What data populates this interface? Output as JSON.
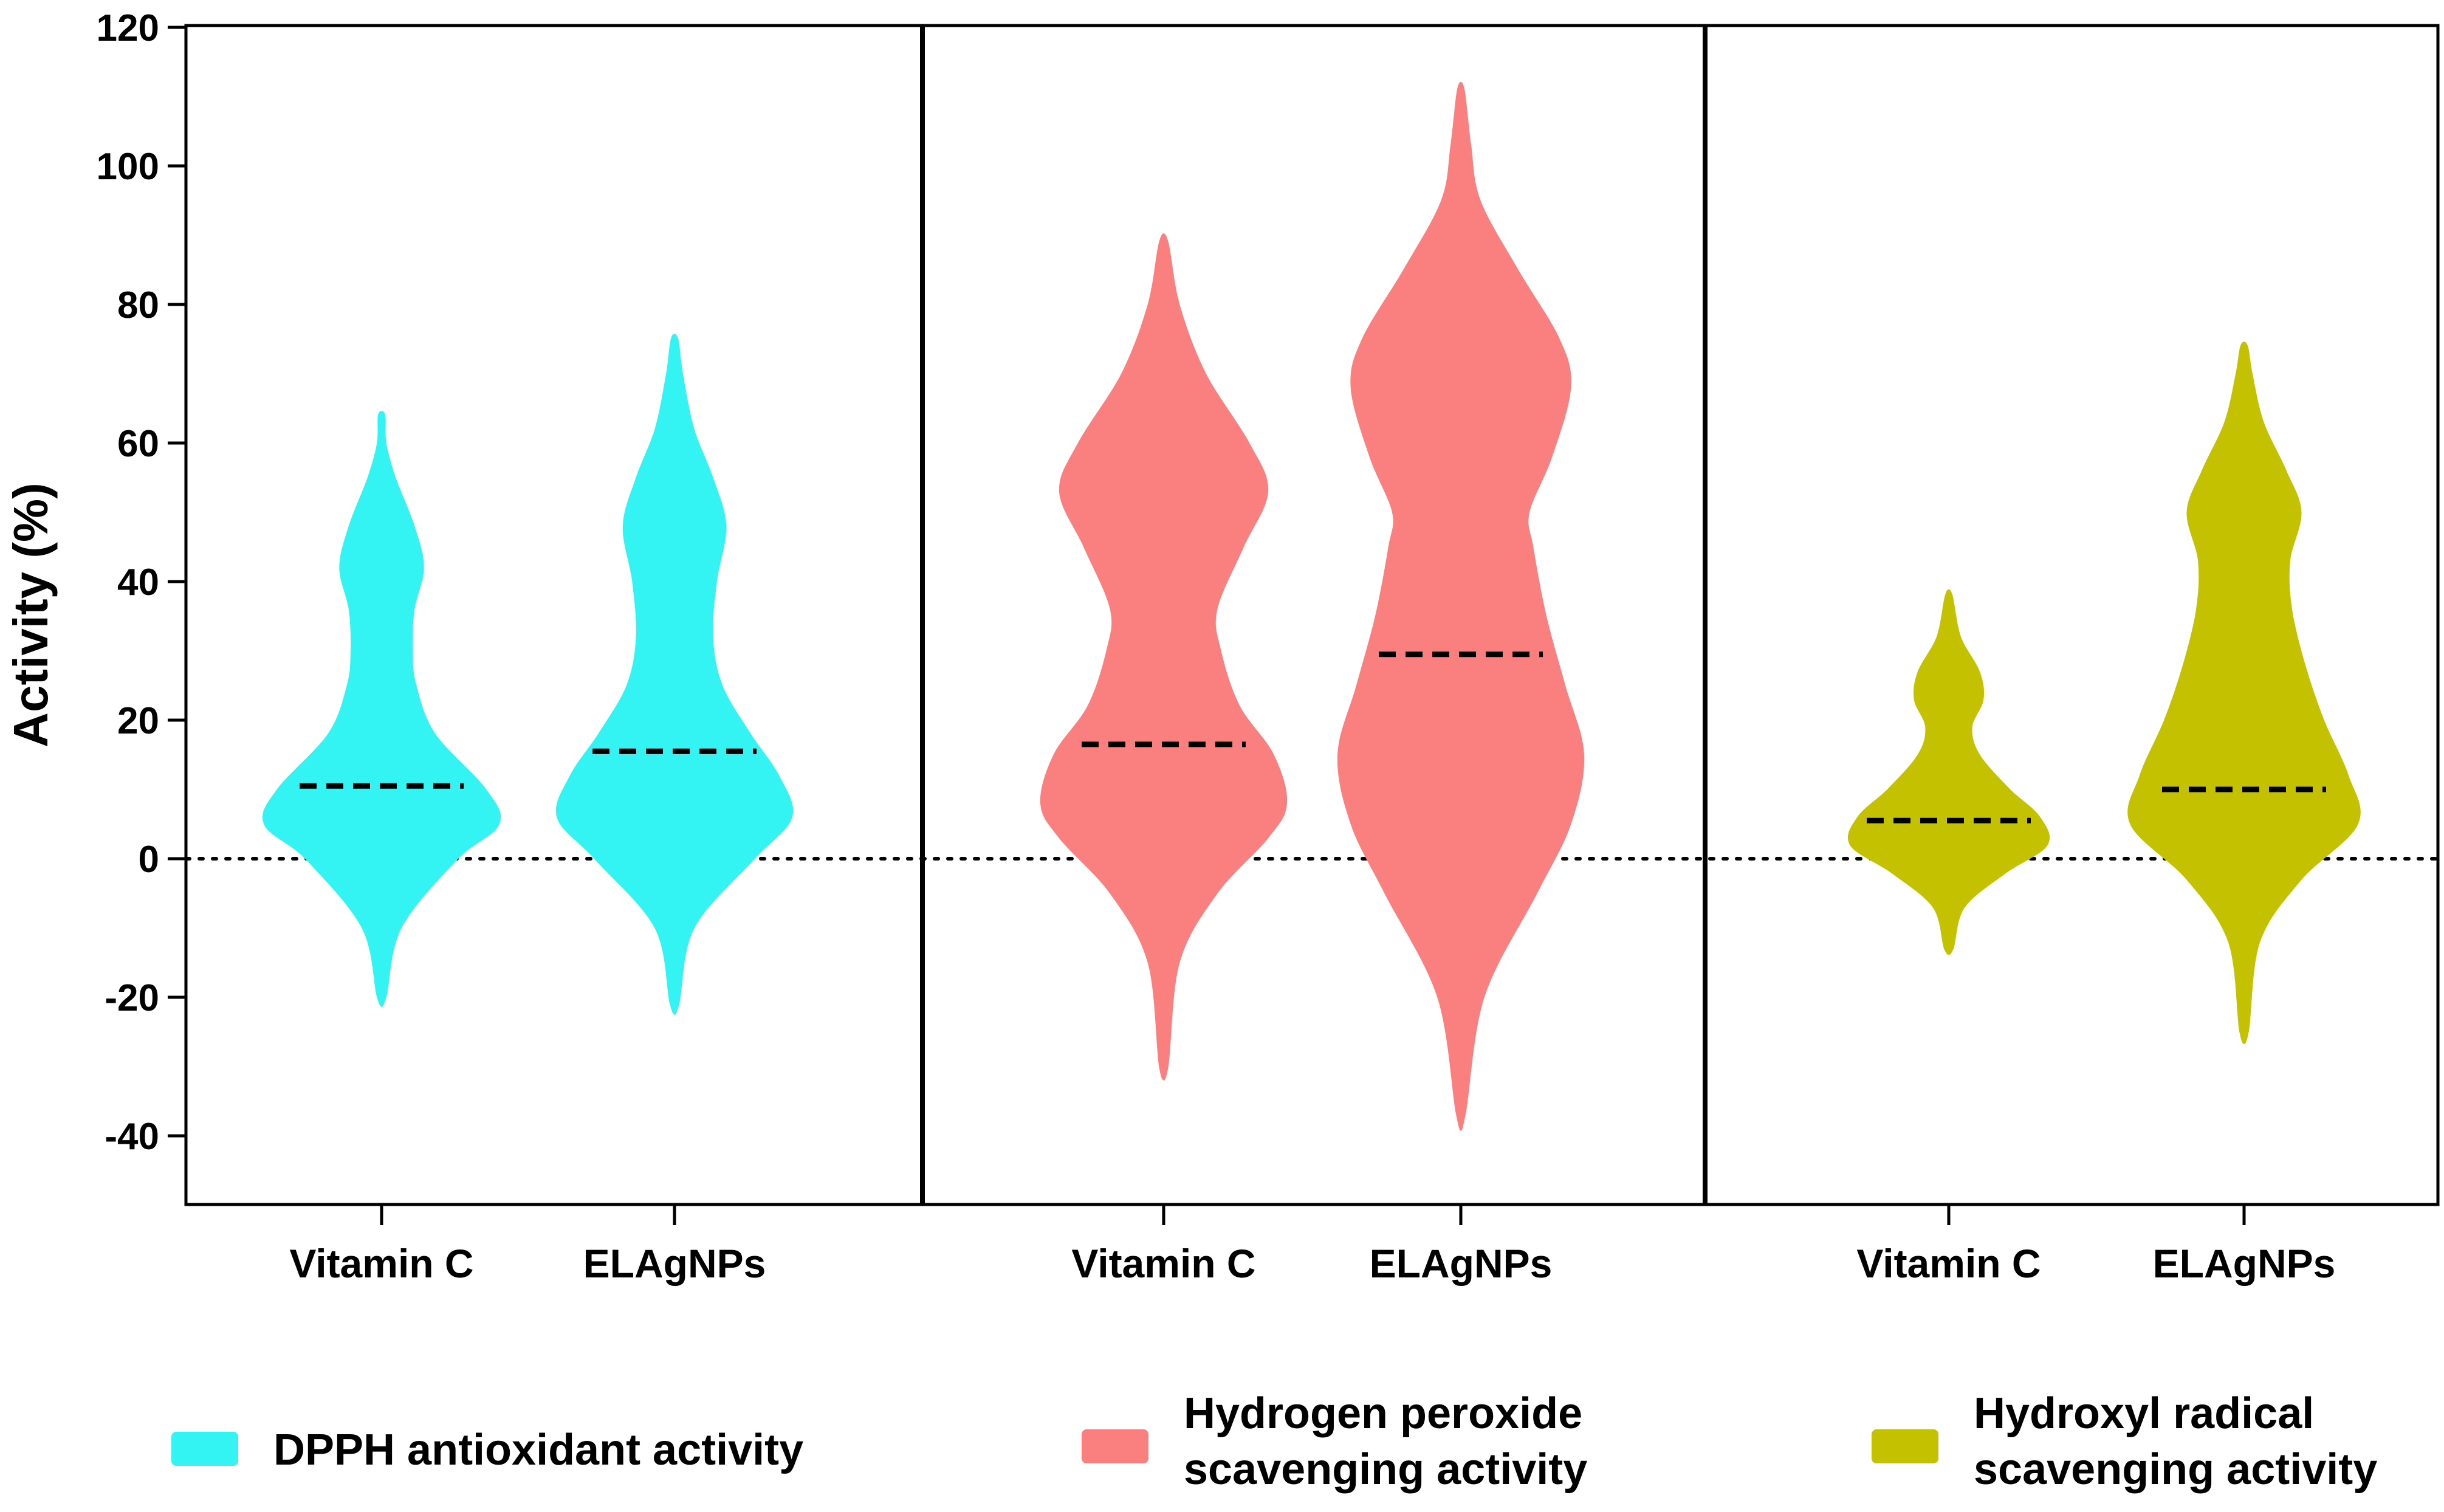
{
  "chart_data": {
    "type": "violin",
    "ylabel": "Activity (%)",
    "ylim": [
      -50,
      120
    ],
    "yticks": [
      -40,
      -20,
      0,
      20,
      40,
      60,
      80,
      100,
      120
    ],
    "reference_line": 0,
    "panels": [
      {
        "name": "DPPH antioxidant activity",
        "color": "#33f3f3",
        "legend": [
          "DPPH antioxidant activity"
        ],
        "categories": [
          "Vitamin C",
          "ELAgNPs"
        ],
        "violins": [
          {
            "category": "Vitamin C",
            "median": 10.5,
            "min": -20,
            "max": 64,
            "profile": [
              [
                -20,
                0.02
              ],
              [
                -10,
                0.1
              ],
              [
                0,
                0.4
              ],
              [
                5,
                0.62
              ],
              [
                10,
                0.55
              ],
              [
                18,
                0.28
              ],
              [
                25,
                0.18
              ],
              [
                30,
                0.16
              ],
              [
                36,
                0.17
              ],
              [
                42,
                0.22
              ],
              [
                48,
                0.17
              ],
              [
                55,
                0.07
              ],
              [
                60,
                0.02
              ],
              [
                64,
                0.015
              ]
            ]
          },
          {
            "category": "ELAgNPs",
            "median": 15.5,
            "min": -21,
            "max": 75,
            "profile": [
              [
                -21,
                0.02
              ],
              [
                -10,
                0.1
              ],
              [
                0,
                0.42
              ],
              [
                6,
                0.62
              ],
              [
                12,
                0.55
              ],
              [
                18,
                0.4
              ],
              [
                25,
                0.25
              ],
              [
                32,
                0.2
              ],
              [
                40,
                0.22
              ],
              [
                48,
                0.27
              ],
              [
                55,
                0.2
              ],
              [
                62,
                0.1
              ],
              [
                70,
                0.04
              ],
              [
                75,
                0.015
              ]
            ]
          }
        ]
      },
      {
        "name": "Hydrogen peroxide scavenging activity",
        "color": "#fa8080",
        "legend": [
          "Hydrogen peroxide",
          "scavenging activity"
        ],
        "categories": [
          "Vitamin C",
          "ELAgNPs"
        ],
        "violins": [
          {
            "category": "Vitamin C",
            "median": 16.5,
            "min": -30,
            "max": 89,
            "profile": [
              [
                -30,
                0.02
              ],
              [
                -15,
                0.08
              ],
              [
                -5,
                0.28
              ],
              [
                3,
                0.55
              ],
              [
                8,
                0.65
              ],
              [
                15,
                0.58
              ],
              [
                22,
                0.4
              ],
              [
                30,
                0.3
              ],
              [
                36,
                0.28
              ],
              [
                45,
                0.42
              ],
              [
                53,
                0.55
              ],
              [
                60,
                0.45
              ],
              [
                70,
                0.22
              ],
              [
                80,
                0.08
              ],
              [
                89,
                0.02
              ]
            ]
          },
          {
            "category": "ELAgNPs",
            "median": 29.5,
            "min": -37,
            "max": 111,
            "profile": [
              [
                -37,
                0.02
              ],
              [
                -20,
                0.12
              ],
              [
                -5,
                0.4
              ],
              [
                5,
                0.58
              ],
              [
                15,
                0.65
              ],
              [
                25,
                0.55
              ],
              [
                35,
                0.45
              ],
              [
                45,
                0.38
              ],
              [
                50,
                0.36
              ],
              [
                58,
                0.48
              ],
              [
                68,
                0.58
              ],
              [
                75,
                0.52
              ],
              [
                85,
                0.3
              ],
              [
                95,
                0.1
              ],
              [
                103,
                0.05
              ],
              [
                111,
                0.015
              ]
            ]
          }
        ]
      },
      {
        "name": "Hydroxyl radical scavenging activity",
        "color": "#c4c100",
        "legend": [
          "Hydroxyl radical",
          "scavenging activity"
        ],
        "categories": [
          "Vitamin C",
          "ELAgNPs"
        ],
        "violins": [
          {
            "category": "Vitamin C",
            "median": 5.5,
            "min": -13,
            "max": 38,
            "profile": [
              [
                -13,
                0.02
              ],
              [
                -7,
                0.08
              ],
              [
                -2,
                0.3
              ],
              [
                2,
                0.52
              ],
              [
                6,
                0.48
              ],
              [
                10,
                0.32
              ],
              [
                15,
                0.16
              ],
              [
                19,
                0.12
              ],
              [
                23,
                0.18
              ],
              [
                27,
                0.16
              ],
              [
                32,
                0.06
              ],
              [
                38,
                0.015
              ]
            ]
          },
          {
            "category": "ELAgNPs",
            "median": 10,
            "min": -25,
            "max": 74,
            "profile": [
              [
                -25,
                0.02
              ],
              [
                -12,
                0.08
              ],
              [
                -3,
                0.3
              ],
              [
                5,
                0.6
              ],
              [
                12,
                0.55
              ],
              [
                20,
                0.42
              ],
              [
                28,
                0.32
              ],
              [
                36,
                0.25
              ],
              [
                43,
                0.24
              ],
              [
                50,
                0.3
              ],
              [
                56,
                0.22
              ],
              [
                63,
                0.1
              ],
              [
                70,
                0.04
              ],
              [
                74,
                0.015
              ]
            ]
          }
        ]
      }
    ]
  }
}
